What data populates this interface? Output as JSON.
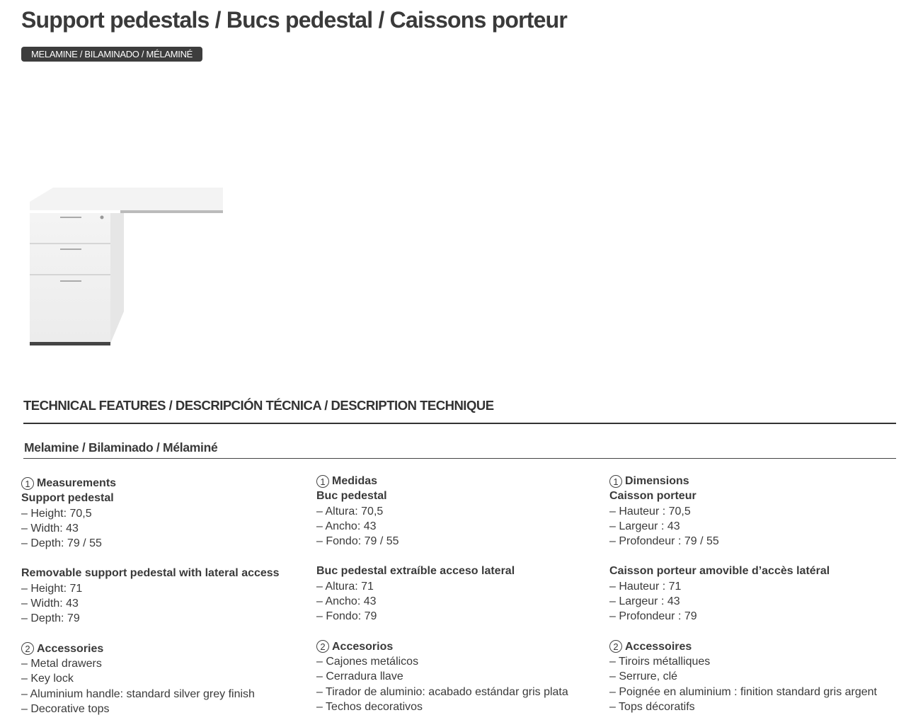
{
  "title": "Support pedestals / Bucs pedestal / Caissons porteur",
  "badge": "MELAMINE / BILAMINADO / MÉLAMINÉ",
  "section_title": "TECHNICAL FEATURES / DESCRIPCIÓN TÉCNICA / DESCRIPTION TECHNIQUE",
  "subsection_title": "Melamine / Bilaminado / Mélaminé",
  "columns": [
    {
      "measure_num": "1",
      "measure_title": "Measurements",
      "groups": [
        {
          "title": "Support pedestal",
          "items": [
            "– Height: 70,5",
            "– Width: 43",
            "– Depth: 79 / 55"
          ]
        },
        {
          "title": "Removable support pedestal with lateral access",
          "items": [
            "– Height: 71",
            "– Width: 43",
            "– Depth: 79"
          ]
        }
      ],
      "acc_num": "2",
      "acc_title": "Accessories",
      "acc_items": [
        "– Metal drawers",
        "– Key lock",
        "– Aluminium handle: standard silver grey finish",
        "– Decorative tops"
      ]
    },
    {
      "measure_num": "1",
      "measure_title": "Medidas",
      "groups": [
        {
          "title": "Buc pedestal",
          "items": [
            "– Altura: 70,5",
            "– Ancho: 43",
            "– Fondo: 79 / 55"
          ]
        },
        {
          "title": "Buc pedestal extraíble acceso lateral",
          "items": [
            "– Altura: 71",
            "– Ancho: 43",
            "– Fondo: 79"
          ]
        }
      ],
      "acc_num": "2",
      "acc_title": "Accesorios",
      "acc_items": [
        "– Cajones metálicos",
        "– Cerradura llave",
        "– Tirador de aluminio: acabado estándar gris plata",
        "– Techos decorativos"
      ]
    },
    {
      "measure_num": "1",
      "measure_title": "Dimensions",
      "groups": [
        {
          "title": "Caisson porteur",
          "items": [
            "– Hauteur : 70,5",
            "– Largeur : 43",
            "– Profondeur : 79 / 55"
          ]
        },
        {
          "title": "Caisson porteur amovible d’accès latéral",
          "items": [
            "– Hauteur : 71",
            "– Largeur : 43",
            "– Profondeur : 79"
          ]
        }
      ],
      "acc_num": "2",
      "acc_title": "Accessoires",
      "acc_items": [
        "– Tiroirs métalliques",
        "– Serrure, clé",
        "– Poignée en aluminium : finition standard gris argent",
        "– Tops décoratifs"
      ]
    }
  ]
}
